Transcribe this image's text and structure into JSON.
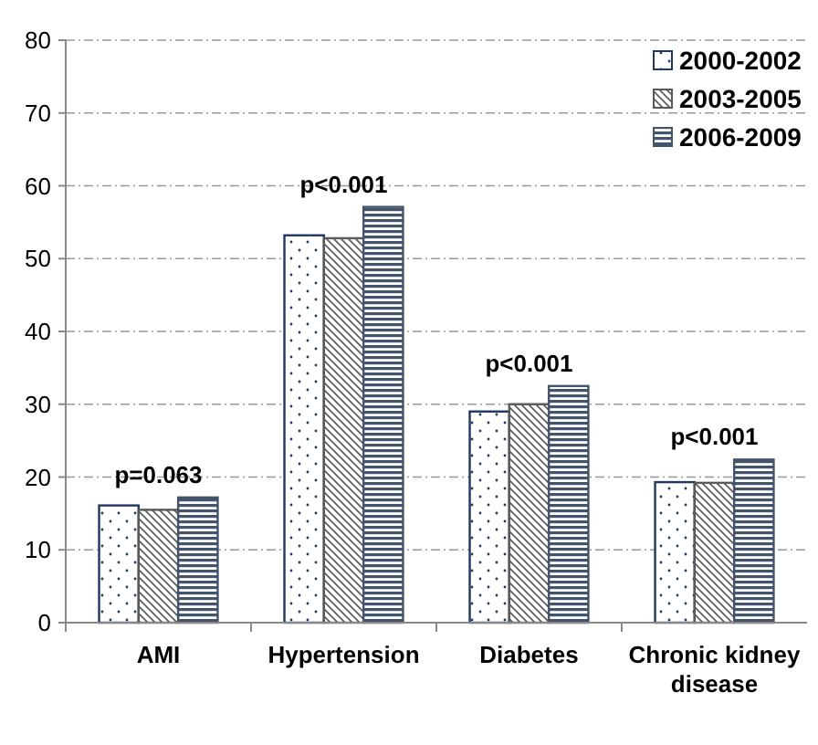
{
  "chart_data": {
    "type": "bar",
    "categories": [
      "AMI",
      "Hypertension",
      "Diabetes",
      "Chronic kidney disease"
    ],
    "series": [
      {
        "name": "2000-2002",
        "color": "#1f3864",
        "values": [
          16.1,
          53.2,
          29,
          19.3
        ]
      },
      {
        "name": "2003-2005",
        "color": "#595959",
        "values": [
          15.5,
          52.8,
          30,
          19.2
        ]
      },
      {
        "name": "2006-2009",
        "color": "#44546a",
        "values": [
          17.2,
          57.1,
          32.5,
          22.4
        ]
      }
    ],
    "ylim": [
      0,
      80
    ],
    "yticks": [
      0,
      10,
      20,
      30,
      40,
      50,
      60,
      70,
      80
    ],
    "grid": "y",
    "legend": "top right",
    "annotations": [
      "p=0.063",
      "p<0.001",
      "p<0.001",
      "p<0.001"
    ]
  }
}
